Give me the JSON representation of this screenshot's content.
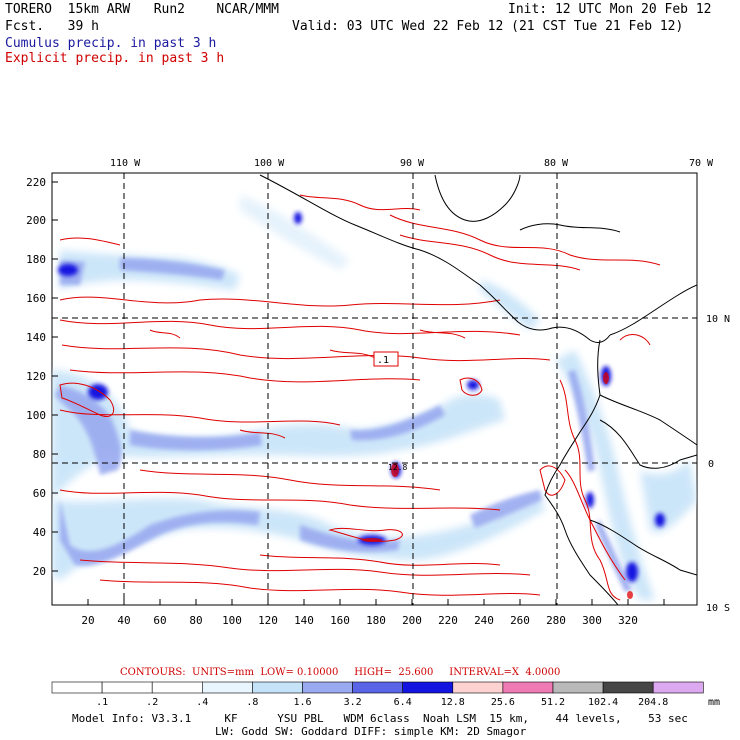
{
  "header": {
    "model": "TORERO  15km ARW   Run2    NCAR/MMM",
    "init": "Init: 12 UTC Mon 20 Feb 12",
    "fcst": "Fcst.   39 h",
    "valid": "Valid: 03 UTC Wed 22 Feb 12 (21 CST Tue 21 Feb 12)",
    "cumulus": "Cumulus precip. in past 3 h",
    "explicit": "Explicit precip. in past 3 h"
  },
  "colors": {
    "cumulus_text": "#1a1aa0",
    "explicit_text": "#d00000",
    "contour": "#e00000",
    "coast": "#000000"
  },
  "map": {
    "lon_labels": [
      "110 W",
      "100 W",
      "90 W",
      "80 W",
      "70 W"
    ],
    "lat_labels": [
      "10 N",
      "0",
      "10 S"
    ],
    "y_ticks": [
      "220",
      "200",
      "180",
      "160",
      "140",
      "120",
      "100",
      "80",
      "60",
      "40",
      "20"
    ],
    "x_ticks": [
      "20",
      "40",
      "60",
      "80",
      "100",
      "120",
      "140",
      "160",
      "180",
      "200",
      "220",
      "240",
      "260",
      "280",
      "300",
      "320"
    ],
    "annotations": [
      ".1",
      "12.8"
    ]
  },
  "contours_line": {
    "label": "CONTOURS:  UNITS=mm  LOW= 0.10000     HIGH=  25.600     INTERVAL=X  4.0000"
  },
  "colorbar": {
    "labels": [
      ".1",
      ".2",
      ".4",
      ".8",
      "1.6",
      "3.2",
      "6.4",
      "12.8",
      "25.6",
      "51.2",
      "102.4",
      "204.8"
    ],
    "unit": "mm",
    "fills": [
      "#ffffff",
      "#ffffff",
      "#ffffff",
      "#eaf6ff",
      "#c4e2f8",
      "#9aaaf0",
      "#5a64e6",
      "#1414e0",
      "#ffd2d2",
      "#f07ab4",
      "#b9b9b9",
      "#464646",
      "#dca8f0"
    ]
  },
  "footer": {
    "line1": "Model Info: V3.3.1     KF      YSU PBL   WDM 6class  Noah LSM  15 km,    44 levels,    53 sec",
    "line2": "LW: Godd SW: Goddard DIFF: simple KM: 2D Smagor"
  }
}
